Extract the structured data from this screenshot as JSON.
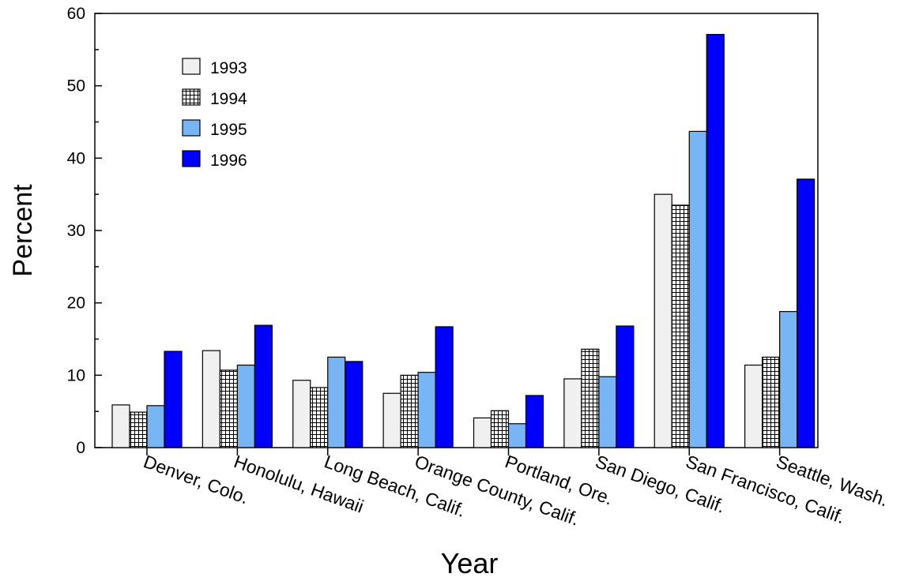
{
  "chart_data": {
    "type": "bar",
    "title": "",
    "xlabel": "Year",
    "ylabel": "Percent",
    "ylim": [
      0,
      60
    ],
    "yticks": [
      0,
      10,
      20,
      30,
      40,
      50,
      60
    ],
    "grid": false,
    "legend_position": "top-left",
    "categories": [
      "Denver, Colo.",
      "Honolulu, Hawaii",
      "Long Beach, Calif.",
      "Orange County, Calif.",
      "Portland, Ore.",
      "San Diego, Calif.",
      "San Francisco, Calif.",
      "Seattle, Wash."
    ],
    "series": [
      {
        "name": "1993",
        "fill": "#f0f0f0",
        "pattern": "none",
        "values": [
          5.9,
          13.4,
          9.3,
          7.5,
          4.1,
          9.5,
          35.0,
          11.4
        ]
      },
      {
        "name": "1994",
        "fill": "#ffffff",
        "pattern": "grid",
        "values": [
          4.9,
          10.7,
          8.3,
          10.0,
          5.1,
          13.6,
          33.5,
          12.5
        ]
      },
      {
        "name": "1995",
        "fill": "#77b5f5",
        "pattern": "none",
        "values": [
          5.8,
          11.4,
          12.5,
          10.4,
          3.3,
          9.8,
          43.7,
          18.8
        ]
      },
      {
        "name": "1996",
        "fill": "#0000ff",
        "pattern": "none",
        "values": [
          13.3,
          16.9,
          11.9,
          16.7,
          7.2,
          16.8,
          57.1,
          37.1
        ]
      }
    ]
  }
}
